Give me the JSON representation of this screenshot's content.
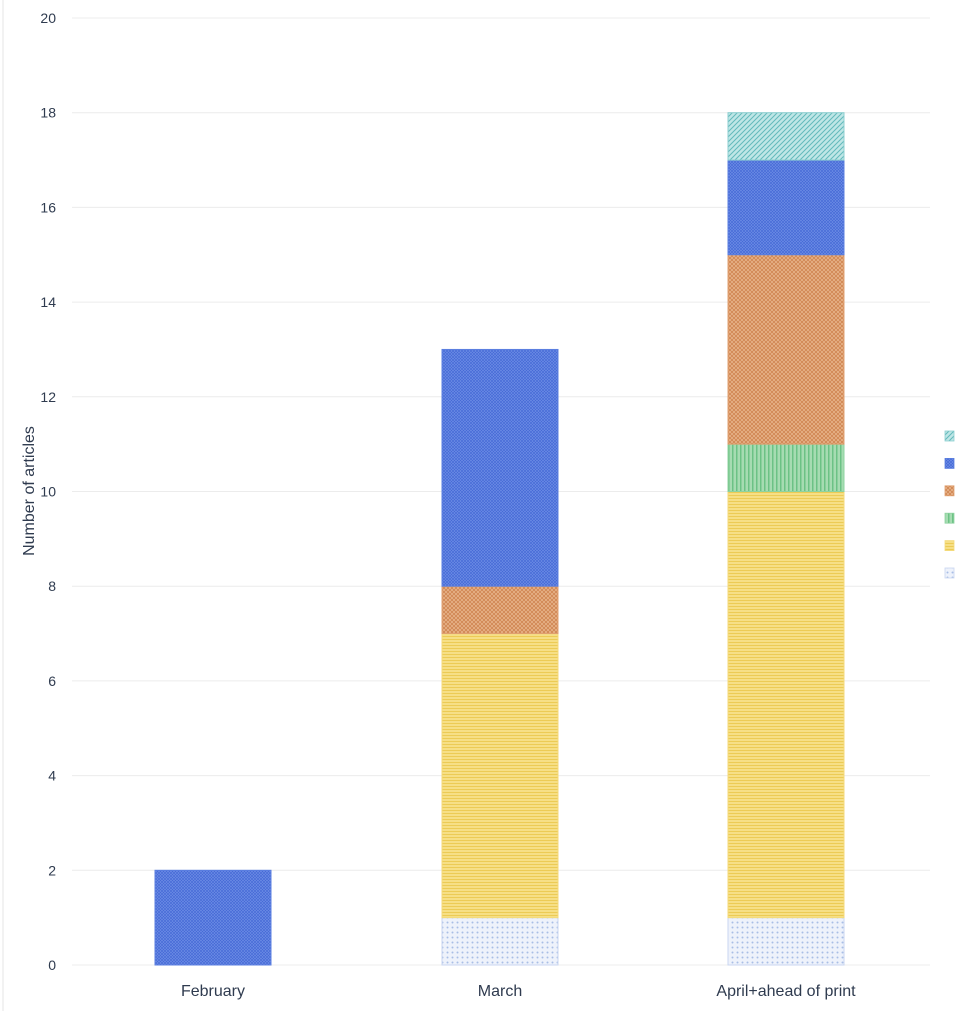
{
  "chart_data": {
    "type": "bar",
    "stacked": true,
    "title": "",
    "xlabel": "",
    "ylabel": "Number of articles",
    "ylim": [
      0,
      20
    ],
    "yticks": [
      0,
      2,
      4,
      6,
      8,
      10,
      12,
      14,
      16,
      18,
      20
    ],
    "grid": true,
    "legend_position": "right",
    "categories": [
      "February",
      "March",
      "April+ahead of print"
    ],
    "series": [
      {
        "color": "#c9d6f0",
        "pattern": "dots",
        "values": [
          0,
          1,
          1
        ]
      },
      {
        "color": "#f4da7a",
        "pattern": "horizontal-lines",
        "values": [
          0,
          6,
          9
        ]
      },
      {
        "color": "#8fd3a0",
        "pattern": "vertical-lines",
        "values": [
          0,
          0,
          1
        ]
      },
      {
        "color": "#e0a070",
        "pattern": "crosshatch",
        "values": [
          0,
          1,
          4
        ]
      },
      {
        "color": "#5b7fe0",
        "pattern": "fine-grid",
        "values": [
          2,
          5,
          2
        ]
      },
      {
        "color": "#8ccfd0",
        "pattern": "diagonal",
        "values": [
          0,
          0,
          1
        ]
      }
    ]
  }
}
